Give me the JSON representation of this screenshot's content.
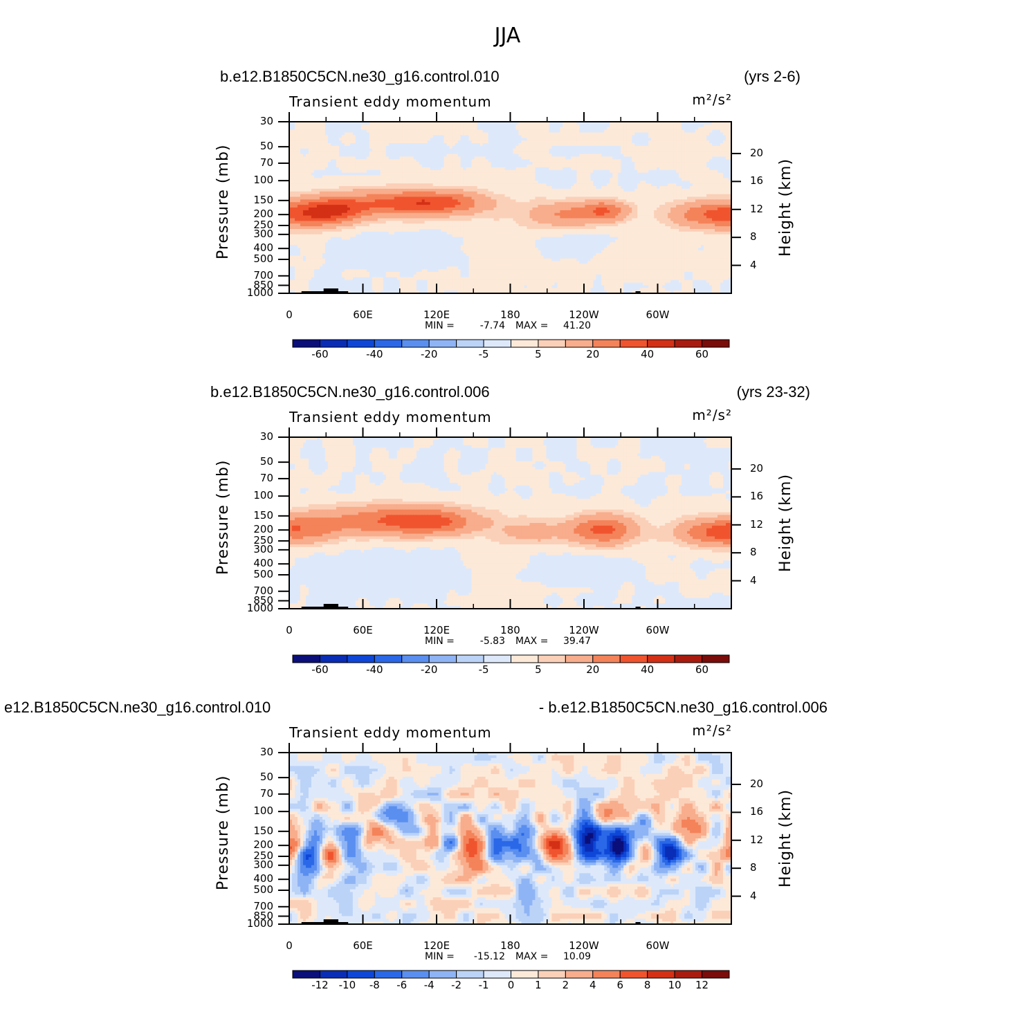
{
  "title": "JJA",
  "colors": {
    "bar_colors": [
      "#0b0f7a",
      "#0a2db6",
      "#0e47d8",
      "#2a68e8",
      "#5a8ff0",
      "#8fb4f5",
      "#bcd3f8",
      "#dde9fb",
      "#fde9d8",
      "#fbd0b8",
      "#f8ad8c",
      "#f4835a",
      "#f0542e",
      "#d43016",
      "#a91b0e",
      "#7a0c0a"
    ]
  },
  "chart_data": [
    {
      "type": "heatmap",
      "case_title": "b.e12.B1850C5CN.ne30_g16.control.010",
      "years": "(yrs 2-6)",
      "subtitle": "Transient eddy momentum",
      "units": "m²/s²",
      "ylabel": "Pressure (mb)",
      "ylabel2": "Height (km)",
      "pressure_ticks": [
        30,
        50,
        70,
        100,
        150,
        200,
        250,
        300,
        400,
        500,
        700,
        850,
        1000
      ],
      "height_ticks": [
        4,
        8,
        12,
        16,
        20
      ],
      "lon_ticks": [
        {
          "lon": 0,
          "label": "0"
        },
        {
          "lon": 60,
          "label": "60E"
        },
        {
          "lon": 120,
          "label": "120E"
        },
        {
          "lon": 180,
          "label": "180"
        },
        {
          "lon": 240,
          "label": "120W"
        },
        {
          "lon": 300,
          "label": "60W"
        }
      ],
      "lon_range": [
        0,
        360
      ],
      "pressure_range": [
        30,
        1000
      ],
      "min_label": "MIN =",
      "min_value": "-7.74",
      "max_label": "MAX =",
      "max_value": "41.20",
      "colorbar_labels": [
        "-60",
        "-40",
        "-20",
        "-5",
        "5",
        "20",
        "40",
        "60"
      ],
      "levels": [
        -70,
        -60,
        -50,
        -40,
        -30,
        -20,
        -10,
        -5,
        0,
        5,
        10,
        20,
        30,
        40,
        50,
        60,
        70
      ],
      "features": [
        {
          "lon": 5,
          "p": 200,
          "wlon": 28,
          "wp": 0.2,
          "amp": 30
        },
        {
          "lon": 35,
          "p": 190,
          "wlon": 16,
          "wp": 0.18,
          "amp": 20
        },
        {
          "lon": 85,
          "p": 160,
          "wlon": 45,
          "wp": 0.2,
          "amp": 30
        },
        {
          "lon": 125,
          "p": 155,
          "wlon": 24,
          "wp": 0.16,
          "amp": 18
        },
        {
          "lon": 225,
          "p": 200,
          "wlon": 22,
          "wp": 0.2,
          "amp": 20
        },
        {
          "lon": 258,
          "p": 185,
          "wlon": 14,
          "wp": 0.16,
          "amp": 25
        },
        {
          "lon": 340,
          "p": 200,
          "wlon": 22,
          "wp": 0.2,
          "amp": 28
        },
        {
          "lon": 365,
          "p": 200,
          "wlon": 14,
          "wp": 0.2,
          "amp": 20
        },
        {
          "lon": 90,
          "p": 420,
          "wlon": 35,
          "wp": 0.25,
          "amp": -3
        },
        {
          "lon": 225,
          "p": 370,
          "wlon": 30,
          "wp": 0.2,
          "amp": -3.5
        },
        {
          "lon": 290,
          "p": 500,
          "wlon": 40,
          "wp": 0.3,
          "amp": 2
        },
        {
          "lon": 175,
          "p": 350,
          "wlon": 22,
          "wp": 0.6,
          "amp": 3
        }
      ],
      "noise": 0
    },
    {
      "type": "heatmap",
      "case_title": "b.e12.B1850C5CN.ne30_g16.control.006",
      "years": "(yrs 23-32)",
      "subtitle": "Transient eddy momentum",
      "units": "m²/s²",
      "ylabel": "Pressure (mb)",
      "ylabel2": "Height (km)",
      "pressure_ticks": [
        30,
        50,
        70,
        100,
        150,
        200,
        250,
        300,
        400,
        500,
        700,
        850,
        1000
      ],
      "height_ticks": [
        4,
        8,
        12,
        16,
        20
      ],
      "lon_ticks": [
        {
          "lon": 0,
          "label": "0"
        },
        {
          "lon": 60,
          "label": "60E"
        },
        {
          "lon": 120,
          "label": "120E"
        },
        {
          "lon": 180,
          "label": "180"
        },
        {
          "lon": 240,
          "label": "120W"
        },
        {
          "lon": 300,
          "label": "60W"
        }
      ],
      "lon_range": [
        0,
        360
      ],
      "pressure_range": [
        30,
        1000
      ],
      "min_label": "MIN =",
      "min_value": "-5.83",
      "max_label": "MAX =",
      "max_value": "39.47",
      "colorbar_labels": [
        "-60",
        "-40",
        "-20",
        "-5",
        "5",
        "20",
        "40",
        "60"
      ],
      "levels": [
        -70,
        -60,
        -50,
        -40,
        -30,
        -20,
        -10,
        -5,
        0,
        5,
        10,
        20,
        30,
        40,
        50,
        60,
        70
      ],
      "features": [
        {
          "lon": 5,
          "p": 200,
          "wlon": 22,
          "wp": 0.2,
          "amp": 26
        },
        {
          "lon": 85,
          "p": 165,
          "wlon": 45,
          "wp": 0.22,
          "amp": 30
        },
        {
          "lon": 120,
          "p": 170,
          "wlon": 22,
          "wp": 0.18,
          "amp": 14
        },
        {
          "lon": 200,
          "p": 210,
          "wlon": 18,
          "wp": 0.18,
          "amp": 12
        },
        {
          "lon": 255,
          "p": 200,
          "wlon": 20,
          "wp": 0.22,
          "amp": 33
        },
        {
          "lon": 345,
          "p": 210,
          "wlon": 22,
          "wp": 0.2,
          "amp": 30
        },
        {
          "lon": 365,
          "p": 200,
          "wlon": 12,
          "wp": 0.2,
          "amp": 18
        },
        {
          "lon": 80,
          "p": 480,
          "wlon": 40,
          "wp": 0.3,
          "amp": -3
        },
        {
          "lon": 225,
          "p": 430,
          "wlon": 35,
          "wp": 0.25,
          "amp": -3.5
        },
        {
          "lon": 175,
          "p": 350,
          "wlon": 20,
          "wp": 0.6,
          "amp": 3
        }
      ],
      "noise": 0
    },
    {
      "type": "heatmap",
      "case_title": "e12.B1850C5CN.ne30_g16.control.010",
      "years": "- b.e12.B1850C5CN.ne30_g16.control.006",
      "subtitle": "Transient eddy momentum",
      "units": "m²/s²",
      "ylabel": "Pressure (mb)",
      "ylabel2": "Height (km)",
      "pressure_ticks": [
        30,
        50,
        70,
        100,
        150,
        200,
        250,
        300,
        400,
        500,
        700,
        850,
        1000
      ],
      "height_ticks": [
        4,
        8,
        12,
        16,
        20
      ],
      "lon_ticks": [
        {
          "lon": 0,
          "label": "0"
        },
        {
          "lon": 60,
          "label": "60E"
        },
        {
          "lon": 120,
          "label": "120E"
        },
        {
          "lon": 180,
          "label": "180"
        },
        {
          "lon": 240,
          "label": "120W"
        },
        {
          "lon": 300,
          "label": "60W"
        }
      ],
      "lon_range": [
        0,
        360
      ],
      "pressure_range": [
        30,
        1000
      ],
      "min_label": "MIN =",
      "min_value": "-15.12",
      "max_label": "MAX =",
      "max_value": "10.09",
      "colorbar_labels": [
        "-12",
        "-10",
        "-8",
        "-6",
        "-4",
        "-2",
        "-1",
        "0",
        "1",
        "2",
        "4",
        "6",
        "8",
        "10",
        "12"
      ],
      "levels": [
        -14,
        -12,
        -10,
        -8,
        -6,
        -4,
        -2,
        -1,
        0,
        1,
        2,
        4,
        6,
        8,
        10,
        12,
        14
      ],
      "features": [
        {
          "lon": 3,
          "p": 210,
          "wlon": 6,
          "wp": 0.18,
          "amp": 6
        },
        {
          "lon": 18,
          "p": 230,
          "wlon": 9,
          "wp": 0.35,
          "amp": -8
        },
        {
          "lon": 32,
          "p": 240,
          "wlon": 8,
          "wp": 0.3,
          "amp": 9
        },
        {
          "lon": 50,
          "p": 190,
          "wlon": 8,
          "wp": 0.28,
          "amp": -6
        },
        {
          "lon": 68,
          "p": 160,
          "wlon": 8,
          "wp": 0.25,
          "amp": 4
        },
        {
          "lon": 75,
          "p": 110,
          "wlon": 7,
          "wp": 0.15,
          "amp": -5
        },
        {
          "lon": 90,
          "p": 110,
          "wlon": 8,
          "wp": 0.15,
          "amp": -5
        },
        {
          "lon": 115,
          "p": 150,
          "wlon": 6,
          "wp": 0.25,
          "amp": 3
        },
        {
          "lon": 130,
          "p": 200,
          "wlon": 6,
          "wp": 0.3,
          "amp": -4
        },
        {
          "lon": 150,
          "p": 220,
          "wlon": 8,
          "wp": 0.3,
          "amp": 7
        },
        {
          "lon": 168,
          "p": 200,
          "wlon": 7,
          "wp": 0.3,
          "amp": -4
        },
        {
          "lon": 190,
          "p": 200,
          "wlon": 9,
          "wp": 0.25,
          "amp": -8
        },
        {
          "lon": 215,
          "p": 200,
          "wlon": 12,
          "wp": 0.25,
          "amp": 7
        },
        {
          "lon": 243,
          "p": 170,
          "wlon": 8,
          "wp": 0.3,
          "amp": -14
        },
        {
          "lon": 268,
          "p": 205,
          "wlon": 8,
          "wp": 0.25,
          "amp": -15
        },
        {
          "lon": 258,
          "p": 110,
          "wlon": 8,
          "wp": 0.15,
          "amp": 4
        },
        {
          "lon": 292,
          "p": 230,
          "wlon": 8,
          "wp": 0.25,
          "amp": 6
        },
        {
          "lon": 308,
          "p": 230,
          "wlon": 9,
          "wp": 0.25,
          "amp": -10
        },
        {
          "lon": 325,
          "p": 140,
          "wlon": 9,
          "wp": 0.2,
          "amp": 6
        },
        {
          "lon": 290,
          "p": 150,
          "wlon": 9,
          "wp": 0.2,
          "amp": -4
        },
        {
          "lon": 360,
          "p": 210,
          "wlon": 5,
          "wp": 0.2,
          "amp": 4
        },
        {
          "lon": 45,
          "p": 650,
          "wlon": 10,
          "wp": 0.3,
          "amp": -2.5
        },
        {
          "lon": 200,
          "p": 500,
          "wlon": 12,
          "wp": 0.3,
          "amp": -2.5
        }
      ],
      "noise": 1.6
    }
  ]
}
